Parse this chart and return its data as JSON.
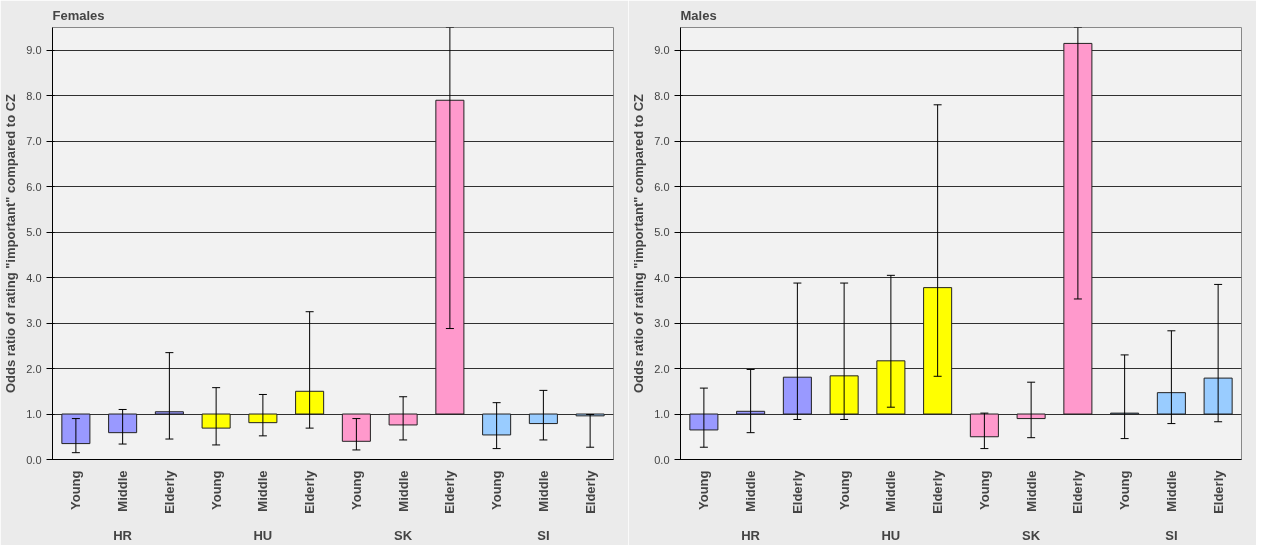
{
  "chart_data": [
    {
      "type": "bar",
      "title": "Females",
      "ylabel": "Odds ratio of rating \"important\" compared to CZ",
      "categories": [
        "Young",
        "Middle",
        "Elderly",
        "Young",
        "Middle",
        "Elderly",
        "Young",
        "Middle",
        "Elderly",
        "Young",
        "Middle",
        "Elderly"
      ],
      "base": [
        1,
        1,
        1,
        1,
        1,
        1,
        1,
        1,
        1,
        1,
        1,
        1
      ],
      "values": [
        -0.65,
        -0.41,
        0.05,
        -0.31,
        -0.19,
        0.5,
        -0.6,
        -0.24,
        6.9,
        -0.46,
        -0.21,
        -0.04
      ],
      "colors": [
        "#9999ff",
        "#9999ff",
        "#9999ff",
        "#ffff00",
        "#ffff00",
        "#ffff00",
        "#ff99cc",
        "#ff99cc",
        "#ff99cc",
        "#99ccff",
        "#99ccff",
        "#99ccff"
      ],
      "errors": [
        [
          0.15,
          0.9
        ],
        [
          0.34,
          1.1
        ],
        [
          0.45,
          2.35
        ],
        [
          0.32,
          1.58
        ],
        [
          0.52,
          1.43
        ],
        [
          0.69,
          3.25
        ],
        [
          0.21,
          0.9
        ],
        [
          0.43,
          1.38
        ],
        [
          2.88,
          9.5
        ],
        [
          0.24,
          1.25
        ],
        [
          0.43,
          1.52
        ],
        [
          0.27,
          0.99
        ]
      ],
      "annotations": [
        "HR",
        "HU",
        "SK",
        "SI"
      ],
      "ylim": [
        0,
        9.5
      ],
      "yticks": [
        {
          "value": 0,
          "label": "0.0"
        },
        {
          "value": 1,
          "label": "1.0"
        },
        {
          "value": 2,
          "label": "2.0"
        },
        {
          "value": 3,
          "label": "3.0"
        },
        {
          "value": 4,
          "label": "4.0"
        },
        {
          "value": 5,
          "label": "5.0"
        },
        {
          "value": 6,
          "label": "6.0"
        },
        {
          "value": 7,
          "label": "7.0"
        },
        {
          "value": 8,
          "label": "8.0"
        },
        {
          "value": 9,
          "label": "9.0"
        }
      ],
      "grid": "y"
    },
    {
      "type": "bar",
      "title": "Males",
      "ylabel": "Odds ratio of rating \"important\" compared to CZ",
      "categories": [
        "Young",
        "Middle",
        "Elderly",
        "Young",
        "Middle",
        "Elderly",
        "Young",
        "Middle",
        "Elderly",
        "Young",
        "Middle",
        "Elderly"
      ],
      "base": [
        1,
        1,
        1,
        1,
        1,
        1,
        1,
        1,
        1,
        1,
        1,
        1
      ],
      "values": [
        -0.35,
        0.06,
        0.81,
        0.84,
        1.17,
        2.78,
        -0.5,
        -0.1,
        8.15,
        0.02,
        0.47,
        0.79
      ],
      "colors": [
        "#9999ff",
        "#9999ff",
        "#9999ff",
        "#ffff00",
        "#ffff00",
        "#ffff00",
        "#ff99cc",
        "#ff99cc",
        "#ff99cc",
        "#99ccff",
        "#99ccff",
        "#99ccff"
      ],
      "errors": [
        [
          0.27,
          1.57
        ],
        [
          0.59,
          1.98
        ],
        [
          0.88,
          3.88
        ],
        [
          0.88,
          3.88
        ],
        [
          1.15,
          4.05
        ],
        [
          1.83,
          7.8
        ],
        [
          0.24,
          1.02
        ],
        [
          0.48,
          1.7
        ],
        [
          3.53,
          9.5
        ],
        [
          0.46,
          2.3
        ],
        [
          0.79,
          2.83
        ],
        [
          0.83,
          3.85
        ]
      ],
      "annotations": [
        "HR",
        "HU",
        "SK",
        "SI"
      ],
      "ylim": [
        0,
        9.5
      ],
      "yticks": [
        {
          "value": 0,
          "label": "0.0"
        },
        {
          "value": 1,
          "label": "1.0"
        },
        {
          "value": 2,
          "label": "2.0"
        },
        {
          "value": 3,
          "label": "3.0"
        },
        {
          "value": 4,
          "label": "4.0"
        },
        {
          "value": 5,
          "label": "5.0"
        },
        {
          "value": 6,
          "label": "6.0"
        },
        {
          "value": 7,
          "label": "7.0"
        },
        {
          "value": 8,
          "label": "8.0"
        },
        {
          "value": 9,
          "label": "9.0"
        }
      ],
      "grid": "y"
    }
  ]
}
